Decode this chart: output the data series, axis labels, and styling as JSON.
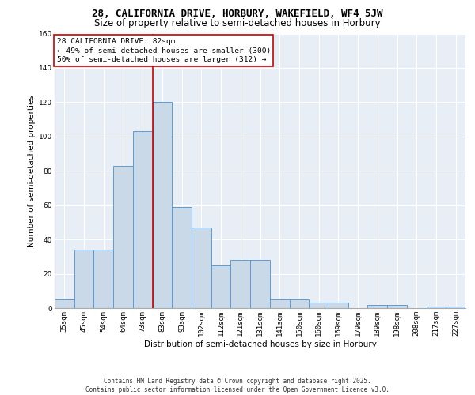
{
  "title_line1": "28, CALIFORNIA DRIVE, HORBURY, WAKEFIELD, WF4 5JW",
  "title_line2": "Size of property relative to semi-detached houses in Horbury",
  "xlabel": "Distribution of semi-detached houses by size in Horbury",
  "ylabel": "Number of semi-detached properties",
  "categories": [
    "35sqm",
    "45sqm",
    "54sqm",
    "64sqm",
    "73sqm",
    "83sqm",
    "93sqm",
    "102sqm",
    "112sqm",
    "121sqm",
    "131sqm",
    "141sqm",
    "150sqm",
    "160sqm",
    "169sqm",
    "179sqm",
    "189sqm",
    "198sqm",
    "208sqm",
    "217sqm",
    "227sqm"
  ],
  "values": [
    5,
    34,
    34,
    83,
    103,
    120,
    59,
    47,
    25,
    28,
    28,
    5,
    5,
    3,
    3,
    0,
    2,
    2,
    0,
    1,
    1
  ],
  "bar_color": "#c9d9e8",
  "bar_edge_color": "#5b9bd5",
  "property_label": "28 CALIFORNIA DRIVE: 82sqm",
  "pct_smaller": 49,
  "count_smaller": 300,
  "pct_larger": 50,
  "count_larger": 312,
  "vline_x_index": 5,
  "vline_color": "#cc0000",
  "annotation_box_color": "#cc0000",
  "ylim": [
    0,
    160
  ],
  "yticks": [
    0,
    20,
    40,
    60,
    80,
    100,
    120,
    140,
    160
  ],
  "background_color": "#e8eef5",
  "grid_color": "#ffffff",
  "footer": "Contains HM Land Registry data © Crown copyright and database right 2025.\nContains public sector information licensed under the Open Government Licence v3.0.",
  "title_fontsize": 9,
  "subtitle_fontsize": 8.5,
  "axis_label_fontsize": 7.5,
  "tick_fontsize": 6.5,
  "annotation_fontsize": 6.8,
  "footer_fontsize": 5.5
}
